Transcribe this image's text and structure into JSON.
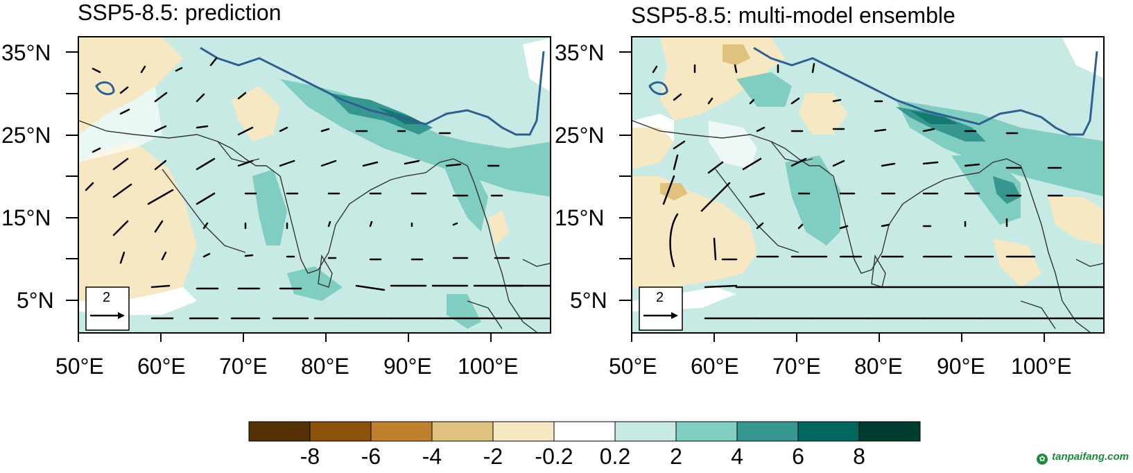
{
  "panels": [
    {
      "title": "SSP5-8.5: prediction",
      "reference_vector_label": "2",
      "lat_labels": [
        "35°N",
        "25°N",
        "15°N",
        "5°N"
      ],
      "lon_labels": [
        "50°E",
        "60°E",
        "70°E",
        "80°E",
        "90°E",
        "100°E"
      ]
    },
    {
      "title": "SSP5-8.5: multi-model ensemble",
      "reference_vector_label": "2",
      "lat_labels": [
        "35°N",
        "25°N",
        "15°N",
        "5°N"
      ],
      "lon_labels": [
        "50°E",
        "60°E",
        "70°E",
        "80°E",
        "90°E",
        "100°E"
      ]
    }
  ],
  "colorbar": {
    "labels": [
      "-8",
      "-6",
      "-4",
      "-2",
      "-0.2",
      "0.2",
      "2",
      "4",
      "6",
      "8"
    ],
    "colors": [
      "#543005",
      "#8c510a",
      "#bf812d",
      "#dfc27d",
      "#f6e8c3",
      "#ffffff",
      "#c7eae5",
      "#80cdc1",
      "#35978f",
      "#01665e",
      "#003c30"
    ]
  },
  "watermark": "tanpaifang.com"
}
